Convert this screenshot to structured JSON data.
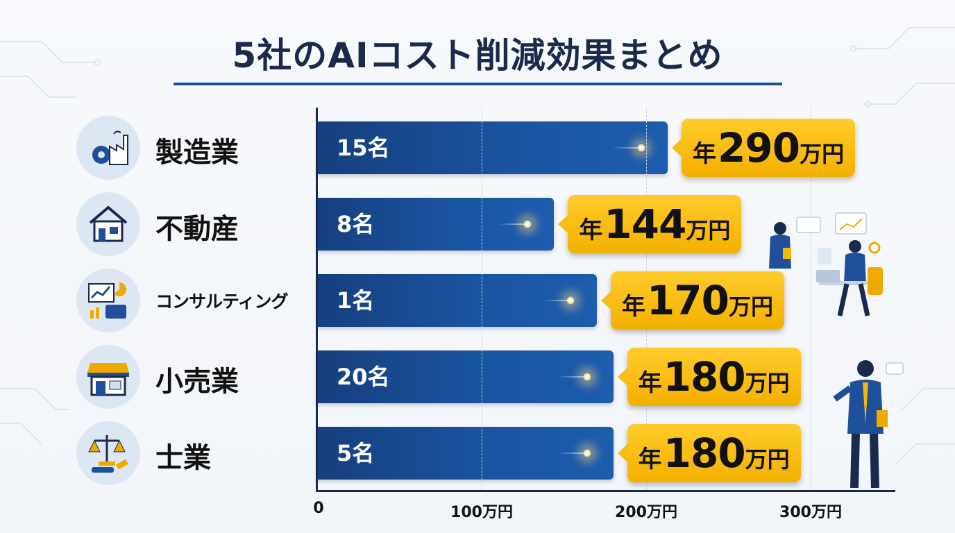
{
  "title": "5社のAIコスト削減効果まとめ",
  "colors": {
    "title": "#1b2a4a",
    "bar": "#1a55a3",
    "callout": "#f8bd14",
    "icon_bg": "#dde7f3"
  },
  "chart_data": {
    "type": "bar",
    "orientation": "horizontal",
    "title": "5社のAIコスト削減効果まとめ",
    "categories": [
      "製造業",
      "不動産",
      "コンサルティング",
      "小売業",
      "士業"
    ],
    "icons": [
      "factory-gear-icon",
      "house-icon",
      "chart-briefcase-icon",
      "shop-icon",
      "scales-gavel-icon"
    ],
    "bar_labels": [
      "15名",
      "8名",
      "1名",
      "20名",
      "5名"
    ],
    "values": [
      290,
      144,
      170,
      180,
      180
    ],
    "value_prefix": "年",
    "value_unit": "万円",
    "xlim": [
      0,
      300
    ],
    "x_ticks": [
      0,
      100,
      200,
      300
    ],
    "x_tick_labels": [
      "0",
      "100万円",
      "200万円",
      "300万円"
    ],
    "grid": true
  }
}
